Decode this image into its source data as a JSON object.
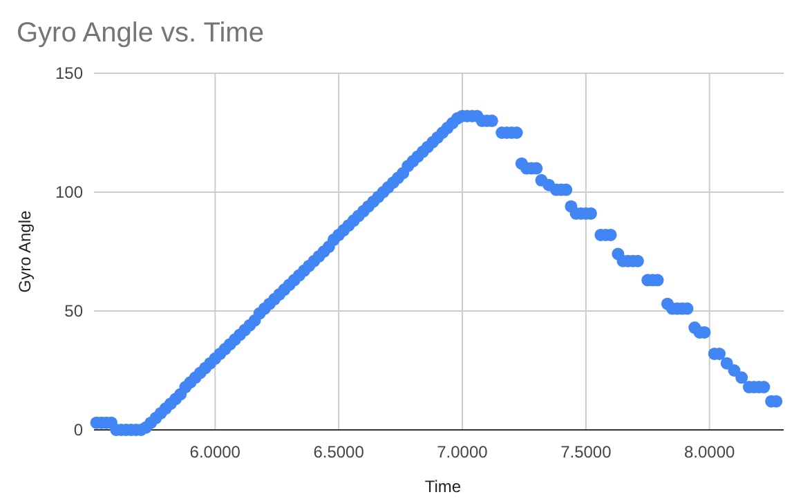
{
  "chart_data": {
    "type": "scatter",
    "title": "Gyro Angle vs. Time",
    "xlabel": "Time",
    "ylabel": "Gyro Angle",
    "xlim": [
      5.51,
      8.3
    ],
    "xticks": [
      {
        "value": 6,
        "label": "6.0000"
      },
      {
        "value": 6.5,
        "label": "6.5000"
      },
      {
        "value": 7,
        "label": "7.0000"
      },
      {
        "value": 7.5,
        "label": "7.5000"
      },
      {
        "value": 8,
        "label": "8.0000"
      }
    ],
    "ylim": [
      0,
      150
    ],
    "yticks": [
      0,
      50,
      100,
      150
    ],
    "grid": true,
    "marker": "circle",
    "series": [
      {
        "color": "#4285f4",
        "x": [
          5.52,
          5.54,
          5.56,
          5.58,
          5.6,
          5.62,
          5.64,
          5.66,
          5.68,
          5.7,
          5.72,
          5.74,
          5.76,
          5.78,
          5.8,
          5.82,
          5.84,
          5.86,
          5.88,
          5.9,
          5.92,
          5.94,
          5.96,
          5.98,
          6.0,
          6.02,
          6.04,
          6.06,
          6.08,
          6.1,
          6.12,
          6.14,
          6.16,
          6.18,
          6.2,
          6.22,
          6.24,
          6.26,
          6.28,
          6.3,
          6.32,
          6.34,
          6.36,
          6.38,
          6.4,
          6.42,
          6.44,
          6.46,
          6.48,
          6.5,
          6.52,
          6.54,
          6.56,
          6.58,
          6.6,
          6.62,
          6.64,
          6.66,
          6.68,
          6.7,
          6.72,
          6.74,
          6.76,
          6.78,
          6.8,
          6.82,
          6.84,
          6.86,
          6.88,
          6.9,
          6.92,
          6.94,
          6.96,
          6.98,
          7.0,
          7.02,
          7.04,
          7.06,
          7.08,
          7.1,
          7.12,
          7.16,
          7.18,
          7.2,
          7.22,
          7.24,
          7.26,
          7.28,
          7.3,
          7.32,
          7.35,
          7.38,
          7.4,
          7.42,
          7.44,
          7.46,
          7.48,
          7.5,
          7.52,
          7.56,
          7.58,
          7.6,
          7.63,
          7.65,
          7.67,
          7.69,
          7.71,
          7.75,
          7.77,
          7.79,
          7.83,
          7.85,
          7.87,
          7.89,
          7.91,
          7.94,
          7.96,
          7.98,
          8.02,
          8.04,
          8.07,
          8.1,
          8.13,
          8.16,
          8.18,
          8.2,
          8.22,
          8.25,
          8.27
        ],
        "values": [
          3,
          3,
          3,
          3,
          0,
          0,
          0,
          0,
          0,
          0,
          1,
          3,
          5,
          7,
          9,
          11,
          13,
          15,
          18,
          20,
          22,
          24,
          26,
          28,
          30,
          32,
          34,
          36,
          38,
          40,
          42,
          44,
          46,
          49,
          51,
          53,
          55,
          57,
          59,
          61,
          63,
          65,
          67,
          69,
          71,
          73,
          75,
          77,
          80,
          82,
          84,
          86,
          88,
          90,
          92,
          94,
          96,
          98,
          100,
          102,
          104,
          106,
          108,
          111,
          113,
          115,
          117,
          119,
          121,
          123,
          125,
          127,
          129,
          131,
          132,
          132,
          132,
          132,
          130,
          130,
          130,
          125,
          125,
          125,
          125,
          112,
          110,
          110,
          110,
          105,
          103,
          101,
          101,
          101,
          94,
          91,
          91,
          91,
          91,
          82,
          82,
          82,
          74,
          71,
          71,
          71,
          71,
          63,
          63,
          63,
          53,
          51,
          51,
          51,
          51,
          43,
          41,
          41,
          32,
          32,
          28,
          25,
          22,
          18,
          18,
          18,
          18,
          12,
          12
        ]
      }
    ]
  }
}
